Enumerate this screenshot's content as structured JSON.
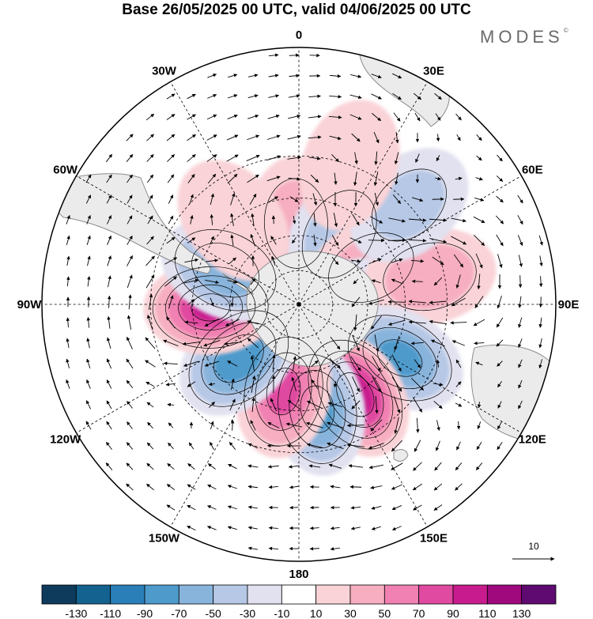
{
  "title": "Base 26/05/2025 00 UTC, valid 04/06/2025 00 UTC",
  "logo": "MODES",
  "logo_mark": "©",
  "longitude_labels": [
    {
      "text": "0",
      "lon": 0
    },
    {
      "text": "30E",
      "lon": 30
    },
    {
      "text": "60E",
      "lon": 60
    },
    {
      "text": "90E",
      "lon": 90
    },
    {
      "text": "120E",
      "lon": 120
    },
    {
      "text": "150E",
      "lon": 150
    },
    {
      "text": "180",
      "lon": 180
    },
    {
      "text": "150W",
      "lon": -150
    },
    {
      "text": "120W",
      "lon": -120
    },
    {
      "text": "90W",
      "lon": -90
    },
    {
      "text": "60W",
      "lon": -60
    },
    {
      "text": "30W",
      "lon": -30
    }
  ],
  "reference_vector_label": "10",
  "colorbar": {
    "labels": [
      "-130",
      "-110",
      "-90",
      "-70",
      "-50",
      "-30",
      "-10",
      "10",
      "30",
      "50",
      "70",
      "90",
      "110",
      "130"
    ],
    "colors": [
      "#0e3a5c",
      "#14628f",
      "#2a7fb8",
      "#4d9acb",
      "#88b4dc",
      "#b6c8e6",
      "#e1e1f0",
      "#ffffff",
      "#f9d3d7",
      "#f6aec0",
      "#f081b2",
      "#e04aa0",
      "#c81c8e",
      "#a0087e",
      "#5e0a70"
    ]
  },
  "anomalies": [
    {
      "lon": -2,
      "lat": -55,
      "value": 45
    },
    {
      "lon": 30,
      "lat": -55,
      "value": -50
    },
    {
      "lon": 63,
      "lat": -55,
      "value": 45
    },
    {
      "lon": 90,
      "lat": -58,
      "value": -30
    },
    {
      "lon": 78,
      "lat": -35,
      "value": 50
    },
    {
      "lon": 118,
      "lat": -42,
      "value": -80
    },
    {
      "lon": 148,
      "lat": -45,
      "value": 110
    },
    {
      "lon": 170,
      "lat": -45,
      "value": -80
    },
    {
      "lon": -170,
      "lat": -52,
      "value": 80
    },
    {
      "lon": -132,
      "lat": -55,
      "value": -90
    },
    {
      "lon": -92,
      "lat": -52,
      "value": 100
    },
    {
      "lon": -65,
      "lat": -55,
      "value": -70
    },
    {
      "lon": -38,
      "lat": -45,
      "value": 20
    },
    {
      "lon": 48,
      "lat": -30,
      "value": -40
    },
    {
      "lon": 20,
      "lat": -30,
      "value": 25
    }
  ]
}
